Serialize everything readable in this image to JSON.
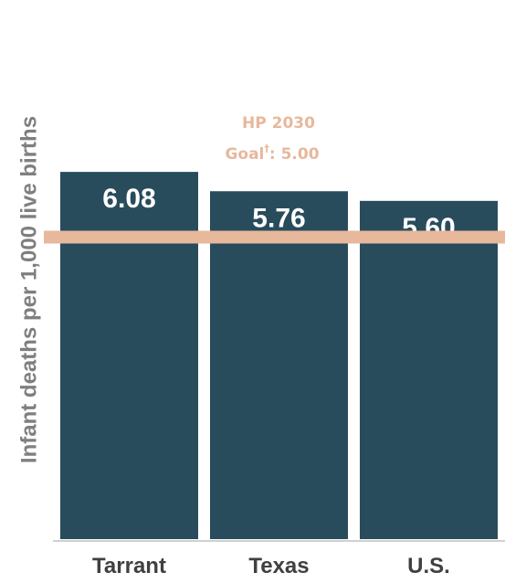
{
  "chart_data": {
    "type": "bar",
    "categories": [
      "Tarrant",
      "Texas",
      "U.S."
    ],
    "values": [
      6.08,
      5.76,
      5.6
    ],
    "value_labels": [
      "6.08",
      "5.76",
      "5.60"
    ],
    "ylabel": "Infant deaths per 1,000 live births",
    "reference_line": {
      "value": 5.0,
      "label_line1": "HP 2030",
      "label_line2_prefix": "Goal",
      "label_line2_sup": "†",
      "label_line2_suffix": ": 5.00"
    },
    "colors": {
      "bar": "#284c5c",
      "goal": "#e7b89c",
      "axis": "#d0d0d0"
    }
  }
}
